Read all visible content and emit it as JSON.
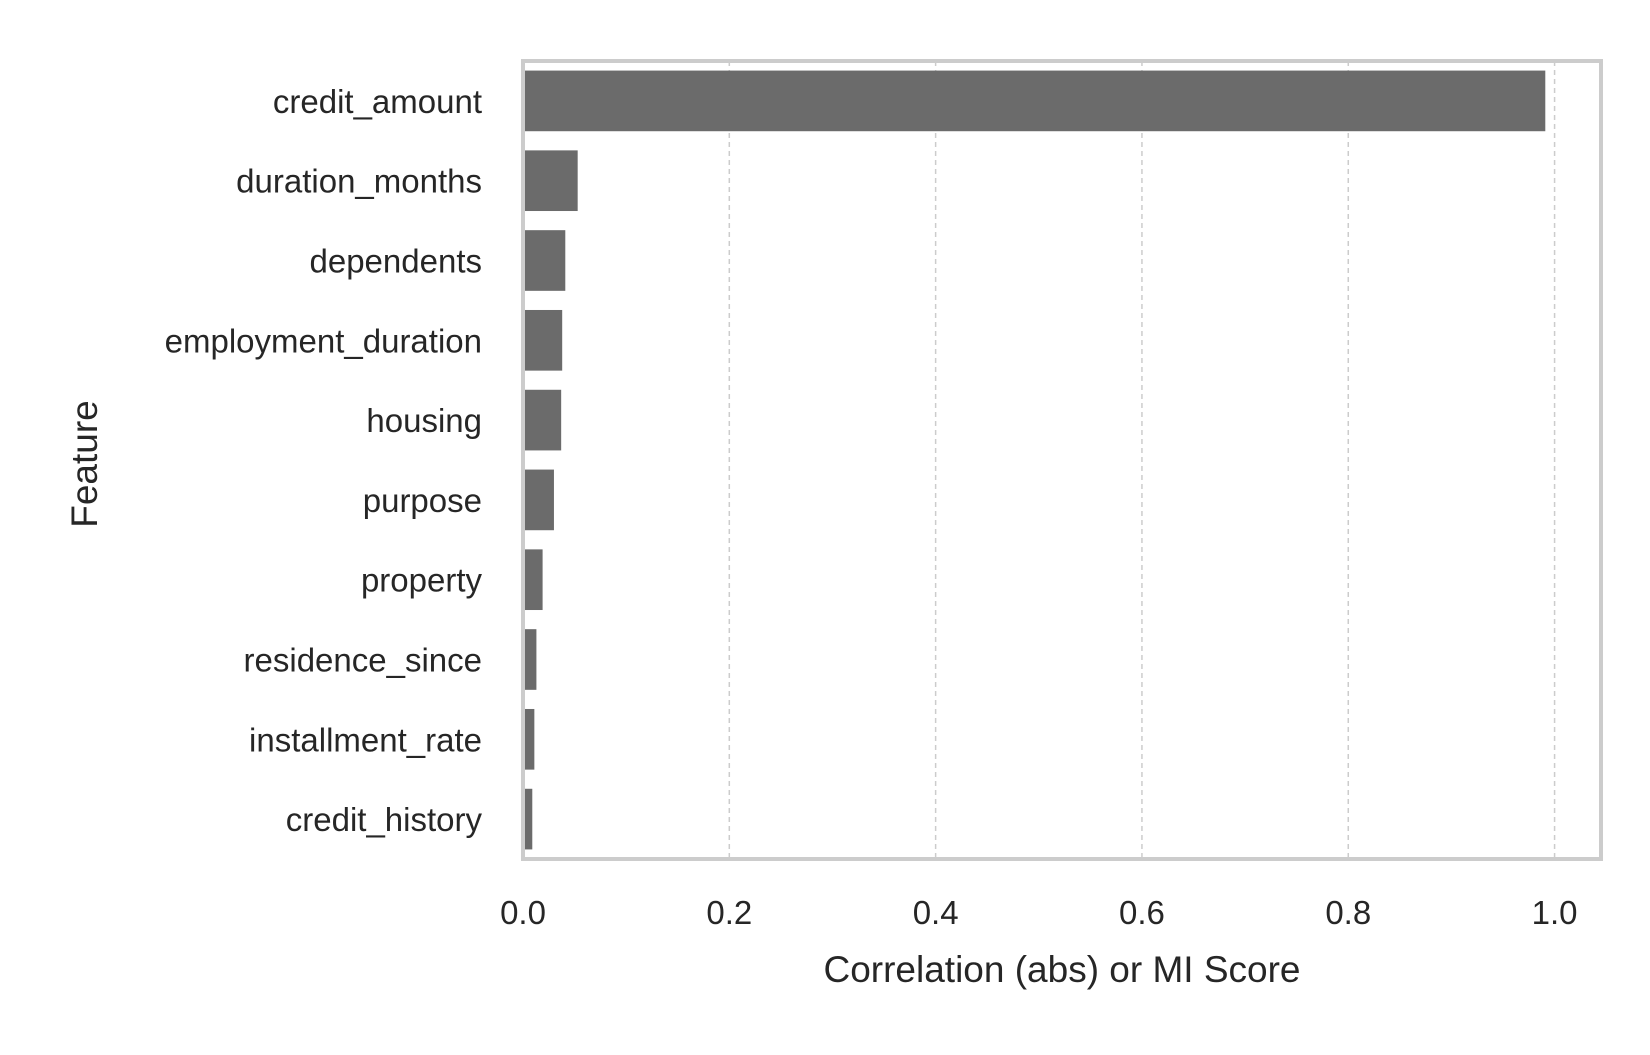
{
  "chart_data": {
    "type": "bar",
    "orientation": "horizontal",
    "categories": [
      "credit_amount",
      "duration_months",
      "dependents",
      "employment_duration",
      "housing",
      "purpose",
      "property",
      "residence_since",
      "installment_rate",
      "credit_history"
    ],
    "values": [
      0.991,
      0.053,
      0.041,
      0.038,
      0.037,
      0.03,
      0.019,
      0.013,
      0.011,
      0.009
    ],
    "xlabel": "Correlation (abs) or MI Score",
    "ylabel": "Feature",
    "xlim": [
      0.0,
      1.045
    ],
    "xticks": [
      "0.0",
      "0.2",
      "0.4",
      "0.6",
      "0.8",
      "1.0"
    ],
    "grid": "x-dashed",
    "bar_color": "#6b6b6b",
    "grid_color": "#cccccc",
    "frame_color": "#cccccc"
  }
}
